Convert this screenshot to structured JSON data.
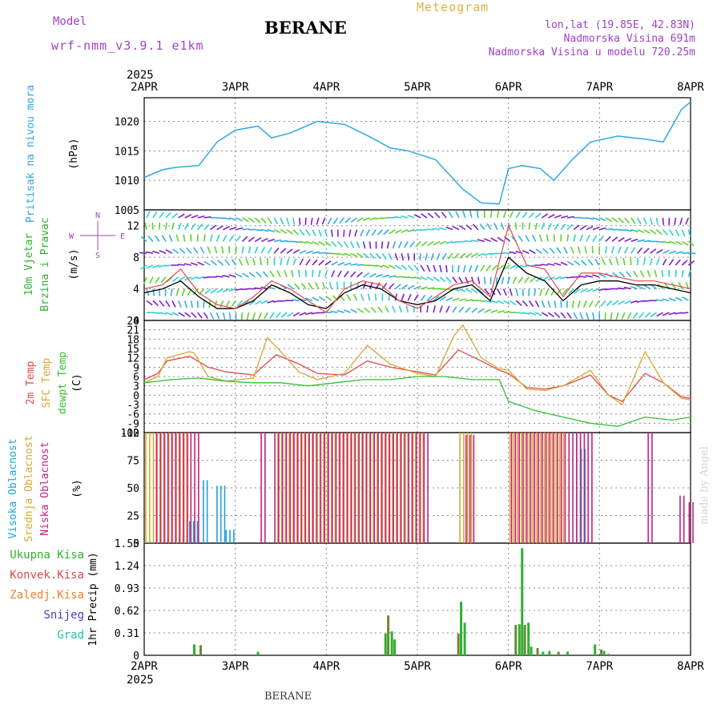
{
  "header": {
    "model_label": "Model",
    "model_name": "wrf-nmm_v3.9.1 e1km",
    "station": "BERANE",
    "product": "Meteogram",
    "lonlat": "lon,lat (19.85E, 42.83N)",
    "elevation": "Nadmorska Visina 691m",
    "model_elevation": "Nadmorska Visina u modelu 720.25m"
  },
  "footer": {
    "station": "BERANE",
    "credit": "made by Angel"
  },
  "time_axis": {
    "year": "2025",
    "ticks": [
      "2APR",
      "3APR",
      "4APR",
      "5APR",
      "6APR",
      "7APR",
      "8APR"
    ]
  },
  "colors": {
    "pressure": "#2ea8e0",
    "temp2m": "#e04848",
    "sfc_temp": "#d8a830",
    "dewpt": "#30c030",
    "cloud_high": "#20a0e0",
    "cloud_mid": "#d8a830",
    "cloud_low": "#c8207c",
    "precip_total": "#30b030",
    "precip_conv": "#e04848",
    "precip_strat": "#f08030",
    "snow": "#4040d0",
    "graupel": "#20c0b0",
    "wind_label": "#30b030",
    "compass": "#a040c8"
  },
  "chart_data": [
    {
      "type": "line",
      "name": "pressure",
      "ylabel": [
        "Pritisak na nivou mora",
        "(hPa)"
      ],
      "ylim": [
        1005,
        1024
      ],
      "yticks": [
        1005,
        1010,
        1015,
        1020
      ],
      "x_days": [
        0,
        0.2,
        0.35,
        0.6,
        0.8,
        1.0,
        1.25,
        1.4,
        1.6,
        1.9,
        2.2,
        2.5,
        2.7,
        2.9,
        3.2,
        3.5,
        3.7,
        3.9,
        4.0,
        4.15,
        4.35,
        4.5,
        4.7,
        4.9,
        5.2,
        5.5,
        5.7,
        5.9,
        6.0
      ],
      "values": [
        1010.5,
        1011.8,
        1012.2,
        1012.5,
        1016.5,
        1018.5,
        1019.2,
        1017.2,
        1018.0,
        1020.0,
        1019.5,
        1017.2,
        1015.5,
        1015.0,
        1013.5,
        1008.5,
        1006.2,
        1006.0,
        1012.0,
        1012.5,
        1012.0,
        1010.0,
        1013.5,
        1016.5,
        1017.5,
        1017.0,
        1016.5,
        1022.0,
        1023.3
      ]
    },
    {
      "type": "line",
      "name": "wind",
      "ylabel": [
        "10m Vjetar",
        "Brzina i Pravac",
        "(m/s)"
      ],
      "compass": [
        "N",
        "S",
        "W",
        "E"
      ],
      "ylim": [
        0,
        14
      ],
      "yticks": [
        0,
        4,
        8,
        12
      ],
      "x_days": [
        0,
        0.2,
        0.4,
        0.6,
        0.8,
        1.0,
        1.2,
        1.4,
        1.6,
        1.8,
        2.0,
        2.2,
        2.4,
        2.6,
        2.8,
        3.0,
        3.2,
        3.4,
        3.6,
        3.8,
        4.0,
        4.2,
        4.4,
        4.6,
        4.8,
        5.0,
        5.2,
        5.4,
        5.6,
        5.8,
        6.0
      ],
      "speed": [
        3.5,
        4.0,
        5.0,
        3.0,
        1.5,
        1.5,
        2.5,
        4.5,
        3.5,
        2.0,
        1.5,
        3.5,
        4.5,
        4.0,
        2.5,
        2.0,
        2.5,
        4.0,
        4.5,
        2.5,
        8.0,
        6.0,
        5.0,
        2.5,
        4.5,
        5.0,
        5.0,
        4.5,
        4.5,
        4.0,
        3.5
      ],
      "gust": [
        4.0,
        4.5,
        6.5,
        3.5,
        2.0,
        1.5,
        3.0,
        5.0,
        4.0,
        2.5,
        1.0,
        4.0,
        5.0,
        4.5,
        2.5,
        1.5,
        3.0,
        4.5,
        5.0,
        3.0,
        12.0,
        7.0,
        6.5,
        3.0,
        6.0,
        6.0,
        5.5,
        5.0,
        5.0,
        4.5,
        4.0
      ]
    },
    {
      "type": "line",
      "name": "temperature",
      "ylabel": [
        "2m Temp",
        "SFC Temp",
        "dewpt Temp",
        "(C)"
      ],
      "ylim": [
        -12,
        24
      ],
      "yticks": [
        -12,
        -9,
        -6,
        -3,
        0,
        3,
        6,
        9,
        12,
        15,
        18,
        21,
        24
      ],
      "series": [
        {
          "name": "2m Temp",
          "x_days": [
            0,
            0.15,
            0.25,
            0.5,
            0.7,
            0.9,
            1.2,
            1.45,
            1.7,
            1.9,
            2.2,
            2.45,
            2.7,
            3.0,
            3.2,
            3.45,
            3.7,
            3.9,
            4.0,
            4.2,
            4.4,
            4.6,
            4.9,
            5.1,
            5.25,
            5.5,
            5.7,
            5.9,
            6.0
          ],
          "values": [
            5,
            7,
            11,
            12.5,
            9,
            7.5,
            6.5,
            13,
            10,
            7,
            6.5,
            11,
            9,
            7.5,
            6.5,
            14.5,
            11,
            8,
            7,
            2.5,
            2,
            3,
            6.5,
            0,
            -2,
            7,
            4,
            -0.5,
            -1
          ]
        },
        {
          "name": "SFC Temp",
          "x_days": [
            0,
            0.15,
            0.25,
            0.5,
            0.55,
            0.7,
            0.9,
            1.2,
            1.35,
            1.5,
            1.7,
            1.9,
            2.2,
            2.45,
            2.7,
            3.0,
            3.2,
            3.4,
            3.5,
            3.7,
            3.9,
            4.0,
            4.2,
            4.4,
            4.6,
            4.9,
            5.1,
            5.25,
            5.5,
            5.7,
            5.9,
            6.0
          ],
          "values": [
            4,
            6,
            12,
            14,
            13.5,
            6,
            4.5,
            5.5,
            18.5,
            14,
            7.5,
            5,
            7,
            16,
            10,
            7,
            6,
            19,
            22.5,
            12,
            8.5,
            8,
            2,
            1.5,
            3,
            8,
            0,
            -3,
            14,
            4,
            -1,
            -1.5
          ]
        },
        {
          "name": "dewpt Temp",
          "x_days": [
            0,
            0.3,
            0.6,
            0.9,
            1.2,
            1.5,
            1.8,
            2.1,
            2.4,
            2.7,
            3.0,
            3.3,
            3.6,
            3.9,
            4.0,
            4.3,
            4.6,
            4.9,
            5.2,
            5.5,
            5.8,
            6.0
          ],
          "values": [
            4,
            5,
            5.5,
            4.5,
            4,
            4,
            3,
            4,
            5,
            5,
            6,
            6,
            5,
            5,
            -2,
            -5,
            -7,
            -9,
            -10,
            -7,
            -8,
            -7
          ]
        }
      ]
    },
    {
      "type": "bar",
      "name": "cloud_cover",
      "ylabel": [
        "Visoka Oblacnost",
        "Srednja Oblacnost",
        "Niska Oblacnost",
        "(%)"
      ],
      "ylim": [
        0,
        100
      ],
      "yticks": [
        0,
        25,
        50,
        75,
        100
      ],
      "series": [
        {
          "name": "Visoka Oblacnost",
          "segments": [
            [
              0.0,
              0.1,
              1
            ],
            [
              0.5,
              0.6,
              20
            ],
            [
              0.65,
              0.7,
              57
            ],
            [
              0.8,
              0.9,
              52
            ],
            [
              0.9,
              1.0,
              12
            ],
            [
              4.75,
              4.8,
              100
            ],
            [
              4.8,
              4.85,
              85
            ]
          ]
        },
        {
          "name": "Srednja Oblacnost",
          "segments": [
            [
              0.0,
              0.5,
              100
            ],
            [
              1.45,
              3.05,
              100
            ],
            [
              3.45,
              3.6,
              100
            ],
            [
              4.0,
              4.6,
              100
            ]
          ]
        },
        {
          "name": "Niska Oblacnost",
          "segments": [
            [
              0.1,
              0.6,
              100
            ],
            [
              1.25,
              1.3,
              100
            ],
            [
              1.4,
              3.1,
              100
            ],
            [
              3.5,
              3.6,
              98
            ],
            [
              4.0,
              4.9,
              100
            ],
            [
              5.5,
              5.55,
              100
            ],
            [
              5.85,
              5.9,
              43
            ],
            [
              5.95,
              6.0,
              37
            ]
          ]
        }
      ]
    },
    {
      "type": "bar",
      "name": "precipitation",
      "ylabel": [
        "1hr Precip (mm)"
      ],
      "legend": [
        "Ukupna Kisa",
        "Konvek.Kisa",
        "Zaledj.Kisa",
        "Snijeg",
        "Grad"
      ],
      "ylim": [
        0,
        1.55
      ],
      "yticks": [
        0,
        0.31,
        0.62,
        0.93,
        1.24,
        1.55
      ],
      "x_days": [
        0.55,
        0.62,
        1.25,
        2.65,
        2.68,
        2.72,
        2.75,
        3.45,
        3.48,
        3.52,
        4.08,
        4.12,
        4.15,
        4.18,
        4.22,
        4.25,
        4.32,
        4.38,
        4.45,
        4.55,
        4.65,
        4.95,
        5.02,
        5.05,
        5.1
      ],
      "values": [
        0.15,
        0.14,
        0.05,
        0.3,
        0.55,
        0.33,
        0.22,
        0.3,
        0.74,
        0.45,
        0.42,
        0.43,
        1.48,
        0.42,
        0.45,
        0.12,
        0.1,
        0.05,
        0.06,
        0.05,
        0.05,
        0.15,
        0.08,
        0.06,
        0.02
      ]
    }
  ]
}
